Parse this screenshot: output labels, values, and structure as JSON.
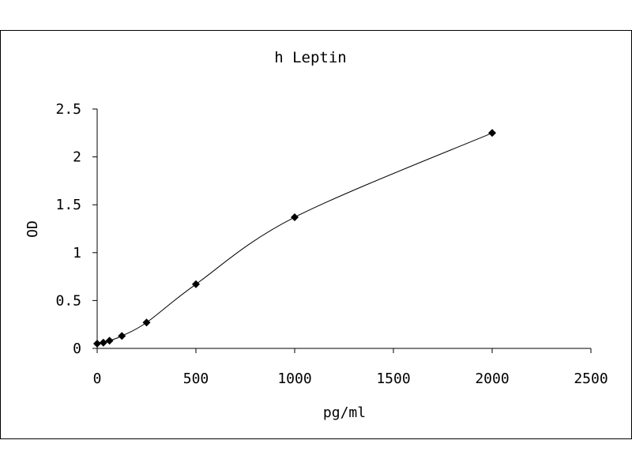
{
  "chart_data": {
    "type": "scatter",
    "title": "h Leptin",
    "xlabel": "pg/ml",
    "ylabel": "OD",
    "xlim": [
      0,
      2500
    ],
    "ylim": [
      0,
      2.5
    ],
    "x_ticks": [
      "0",
      "500",
      "1000",
      "1500",
      "2000",
      "2500"
    ],
    "y_ticks": [
      "0",
      "0.5",
      "1",
      "1.5",
      "2",
      "2.5"
    ],
    "grid": false,
    "legend": "none",
    "marker": "diamond",
    "line": "smooth",
    "series": [
      {
        "x": [
          0,
          31.25,
          62.5,
          125,
          250,
          500,
          1000,
          2000
        ],
        "y": [
          0.05,
          0.06,
          0.08,
          0.13,
          0.27,
          0.67,
          1.37,
          2.25
        ]
      }
    ],
    "colors": {
      "line": "#000000",
      "marker": "#000000",
      "axis": "#000000"
    }
  }
}
